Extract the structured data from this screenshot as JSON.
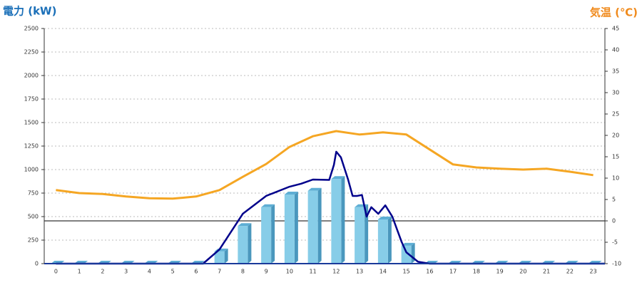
{
  "chart_data": {
    "type": "combo",
    "y_title": "電力 (kW)",
    "y2_title": "気温 (℃)",
    "categories": [
      "0",
      "1",
      "2",
      "3",
      "4",
      "5",
      "6",
      "7",
      "8",
      "9",
      "10",
      "11",
      "12",
      "13",
      "14",
      "15",
      "16",
      "17",
      "18",
      "19",
      "20",
      "21",
      "22",
      "23"
    ],
    "ylim": [
      0,
      2500
    ],
    "yticks": [
      0,
      250,
      500,
      750,
      1000,
      1250,
      1500,
      1750,
      2000,
      2250,
      2500
    ],
    "y2lim": [
      -10,
      45
    ],
    "y2ticks": [
      -10,
      -5,
      0,
      5,
      10,
      15,
      20,
      25,
      30,
      35,
      40,
      45
    ],
    "grid": true,
    "series": [
      {
        "type": "bar",
        "color": "#87cde8",
        "values": [
          0,
          0,
          0,
          0,
          0,
          0,
          0,
          130,
          400,
          600,
          735,
          775,
          900,
          600,
          470,
          190,
          0,
          0,
          0,
          0,
          0,
          0,
          0,
          0
        ]
      },
      {
        "type": "line",
        "color": "#00008b",
        "x": [
          0,
          6.3,
          7,
          8,
          9,
          10,
          10.5,
          11,
          11.7,
          11.9,
          12,
          12.2,
          12.5,
          12.7,
          12.9,
          13.1,
          13.3,
          13.5,
          13.8,
          14.1,
          14.4,
          14.8,
          15,
          15.5,
          16,
          23.5
        ],
        "values": [
          0,
          0,
          150,
          530,
          720,
          818,
          850,
          894,
          890,
          1050,
          1190,
          1130,
          900,
          720,
          720,
          730,
          500,
          600,
          530,
          620,
          500,
          230,
          120,
          20,
          0,
          0
        ]
      },
      {
        "type": "line",
        "axis": "y2",
        "color": "#f5a623",
        "values": [
          7.2,
          6.5,
          6.3,
          5.7,
          5.3,
          5.2,
          5.7,
          7.2,
          10.3,
          13.3,
          17.3,
          19.8,
          21,
          20.2,
          20.7,
          20.2,
          16.7,
          13.2,
          12.5,
          12.2,
          12,
          12.2,
          11.5,
          10.7
        ]
      }
    ]
  }
}
